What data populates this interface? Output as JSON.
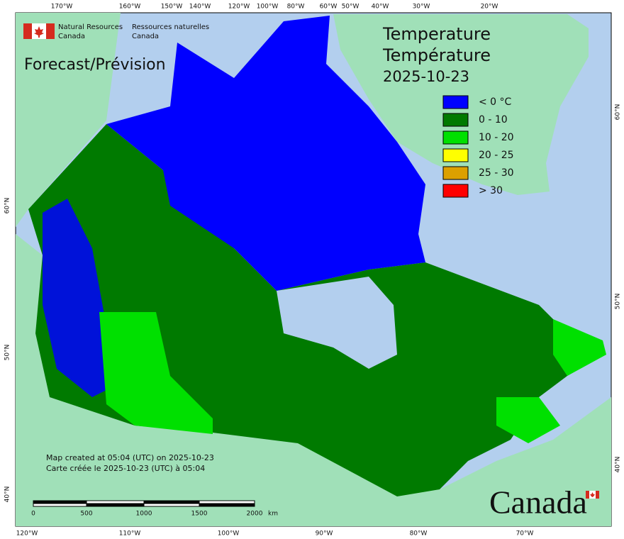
{
  "header": {
    "agency_en": [
      "Natural Resources",
      "Canada"
    ],
    "agency_fr": [
      "Ressources naturelles",
      "Canada"
    ]
  },
  "subtitle": "Forecast/Prévision",
  "title": [
    "Temperature",
    "Température",
    "2025-10-23"
  ],
  "legend": {
    "items": [
      {
        "label": "< 0 °C",
        "color": "#0000ff"
      },
      {
        "label": "0 - 10",
        "color": "#007a00"
      },
      {
        "label": "10 - 20",
        "color": "#00e000"
      },
      {
        "label": "20 - 25",
        "color": "#ffff00"
      },
      {
        "label": "25 - 30",
        "color": "#dca000"
      },
      {
        "label": "> 30",
        "color": "#ff0000"
      }
    ]
  },
  "graticule": {
    "top": [
      "170°W",
      "160°W",
      "150°W",
      "140°W",
      "120°W",
      "100°W",
      "80°W",
      "60°W",
      "50°W",
      "40°W",
      "30°W",
      "20°W"
    ],
    "bottom": [
      "120°W",
      "110°W",
      "100°W",
      "90°W",
      "80°W",
      "70°W"
    ],
    "left": [
      "60°N",
      "50°N",
      "40°N"
    ],
    "right": [
      "60°N",
      "50°N",
      "40°N"
    ]
  },
  "footnote": [
    "Map created at 05:04 (UTC) on 2025-10-23",
    "Carte créée le 2025-10-23 (UTC) à 05:04"
  ],
  "scale_bar": {
    "labels": [
      "0",
      "500",
      "1000",
      "1500",
      "2000",
      "km"
    ]
  },
  "wordmark": "Canada"
}
